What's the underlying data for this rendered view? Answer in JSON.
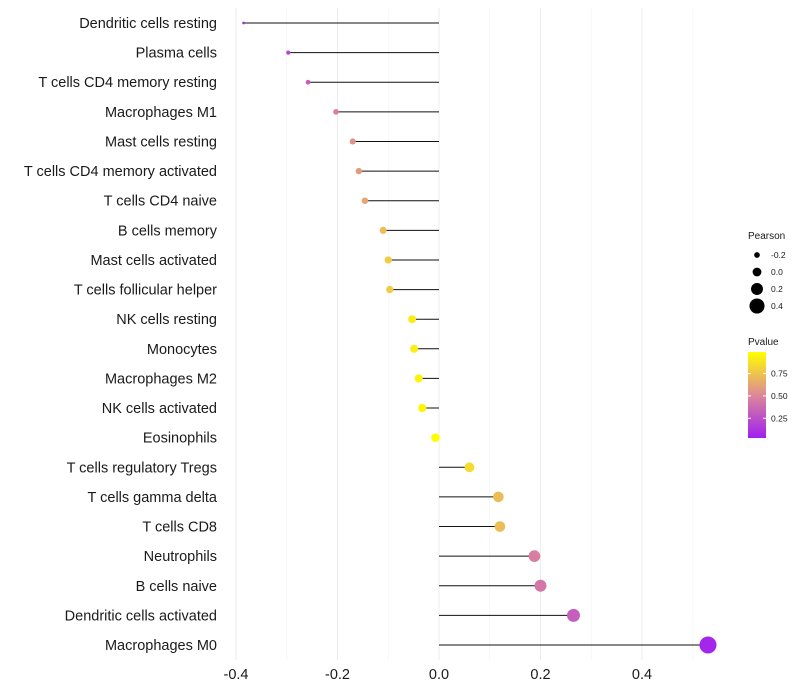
{
  "chart_data": {
    "type": "lollipop",
    "categories": [
      "Dendritic cells resting",
      "Plasma cells",
      "T cells CD4 memory resting",
      "Macrophages M1",
      "Mast cells resting",
      "T cells CD4 memory activated",
      "T cells CD4 naive",
      "B cells memory",
      "Mast cells activated",
      "T cells follicular helper",
      "NK cells resting",
      "Monocytes",
      "Macrophages M2",
      "NK cells activated",
      "Eosinophils",
      "T cells regulatory  Tregs ",
      "T cells gamma delta",
      "T cells CD8",
      "Neutrophils",
      "B cells naive",
      "Dendritic cells activated",
      "Macrophages M0"
    ],
    "pearson": [
      -0.385,
      -0.297,
      -0.258,
      -0.203,
      -0.17,
      -0.158,
      -0.146,
      -0.11,
      -0.1,
      -0.097,
      -0.053,
      -0.049,
      -0.04,
      -0.033,
      -0.007,
      0.06,
      0.117,
      0.12,
      0.188,
      0.2,
      0.265,
      0.53
    ],
    "pvalue": [
      0.05,
      0.18,
      0.3,
      0.45,
      0.55,
      0.58,
      0.62,
      0.72,
      0.78,
      0.78,
      0.92,
      0.93,
      0.95,
      0.96,
      0.99,
      0.85,
      0.72,
      0.72,
      0.45,
      0.42,
      0.3,
      0.03
    ],
    "xlim": [
      -0.4,
      0.55
    ],
    "xticks": [
      -0.4,
      -0.2,
      0.0,
      0.2,
      0.4
    ],
    "xtick_labels": [
      "-0.4",
      "-0.2",
      "0.0",
      "0.2",
      "0.4"
    ],
    "xlabel": "",
    "ylabel": "",
    "grid": "vertical",
    "legend": {
      "position": "right",
      "size_title": "Pearson",
      "size_breaks": [
        -0.2,
        0.0,
        0.2,
        0.4
      ],
      "size_labels": [
        "-0.2",
        "0.0",
        "0.2",
        "0.4"
      ],
      "color_title": "Pvalue",
      "color_breaks": [
        0.75,
        0.5,
        0.25
      ],
      "color_labels": [
        "0.75",
        "0.50",
        "0.25"
      ],
      "color_low": "#a020f0",
      "color_mid": "#dd8899",
      "color_high": "#ffff00"
    }
  }
}
